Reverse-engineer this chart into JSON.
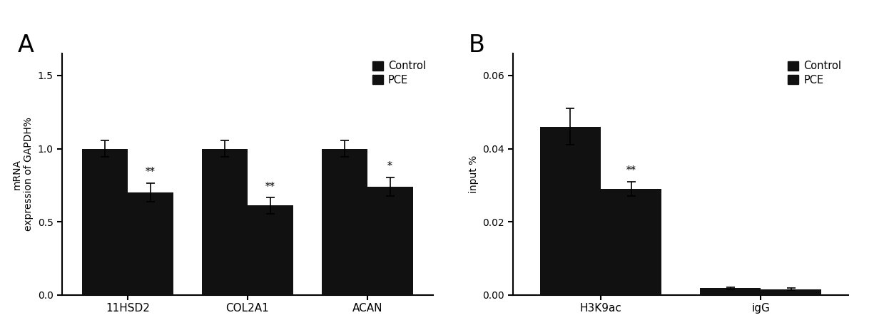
{
  "panel_A": {
    "groups": [
      "11HSD2",
      "COL2A1",
      "ACAN"
    ],
    "control_values": [
      1.0,
      1.0,
      1.0
    ],
    "pce_values": [
      0.7,
      0.61,
      0.74
    ],
    "control_errors": [
      0.055,
      0.055,
      0.055
    ],
    "pce_errors": [
      0.065,
      0.055,
      0.065
    ],
    "pce_annotations": [
      "**",
      "**",
      "*"
    ],
    "ylabel": "mRNA\nexpression of GAPDH%",
    "ylim": [
      0,
      1.65
    ],
    "yticks": [
      0.0,
      0.5,
      1.0,
      1.5
    ],
    "bar_width": 0.38,
    "bar_color": "#111111",
    "panel_label": "A"
  },
  "panel_B": {
    "groups": [
      "H3K9ac",
      "igG"
    ],
    "control_values": [
      0.046,
      0.0018
    ],
    "pce_values": [
      0.029,
      0.0015
    ],
    "control_errors": [
      0.005,
      0.0003
    ],
    "pce_errors": [
      0.002,
      0.0003
    ],
    "pce_annotations": [
      "**",
      ""
    ],
    "ylabel": "input %",
    "ylim": [
      0,
      0.066
    ],
    "yticks": [
      0.0,
      0.02,
      0.04,
      0.06
    ],
    "bar_width": 0.38,
    "bar_color": "#111111",
    "panel_label": "B"
  },
  "legend_labels": [
    "Control",
    "PCE"
  ],
  "legend_color": "#111111"
}
